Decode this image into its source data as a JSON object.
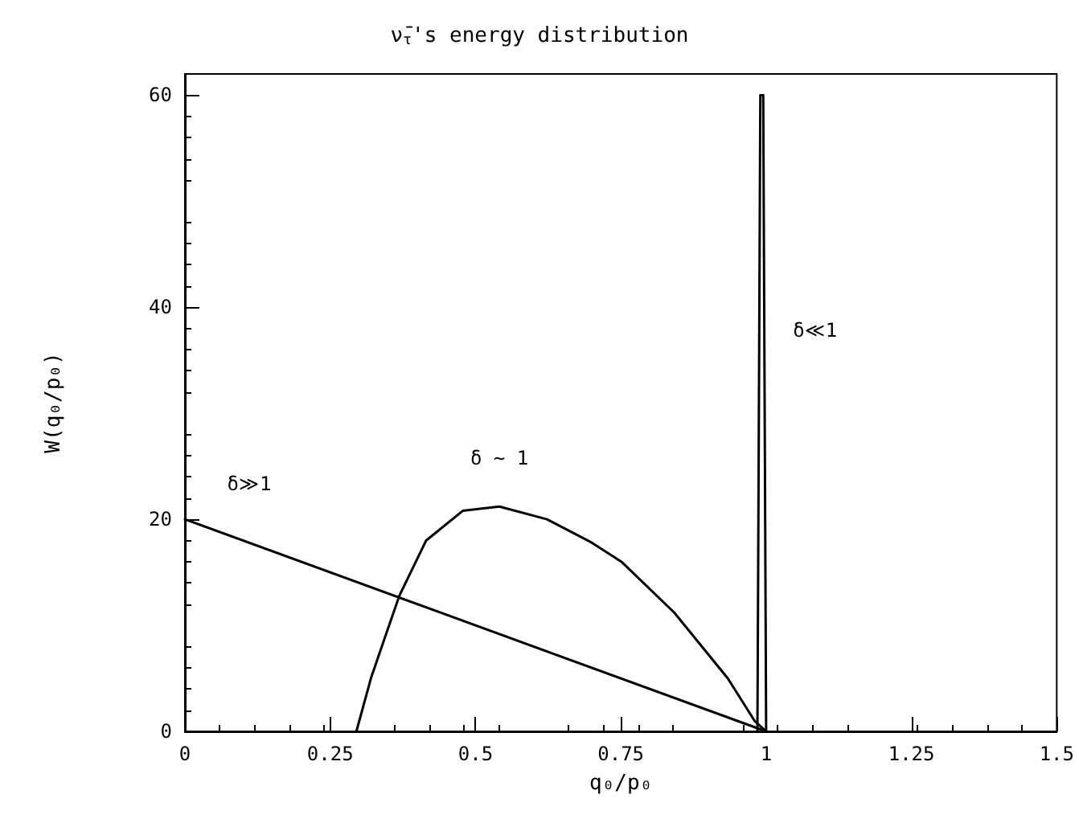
{
  "chart_data": {
    "type": "line",
    "title": "ν̄$_{τ}$'s energy distribution",
    "xlabel": "q₀/p₀",
    "ylabel": "W(q₀/p₀)",
    "series": [
      {
        "name": "δ≫1",
        "color": "#000000",
        "x": [
          0,
          1
        ],
        "values": [
          20,
          0
        ]
      },
      {
        "name": "δ ~ 1",
        "color": "#000000",
        "x": [
          0.295,
          0.32,
          0.345,
          0.369,
          0.415,
          0.478,
          0.541,
          0.623,
          0.7,
          0.751,
          0.842,
          0.934,
          0.98,
          1
        ],
        "values": [
          0,
          5,
          9,
          12.8,
          18,
          20.8,
          21.2,
          20,
          17.8,
          16,
          11.2,
          5,
          1,
          0
        ]
      },
      {
        "name": "δ≪1",
        "color": "#000000",
        "x": [
          0.985,
          0.99,
          0.995,
          1
        ],
        "values": [
          0,
          60,
          60,
          0
        ]
      }
    ],
    "xlim": [
      0,
      1.5
    ],
    "xticks": [
      0,
      0.25,
      0.5,
      0.75,
      1,
      1.25,
      1.5
    ],
    "ylim": [
      0,
      62
    ],
    "yticks": [
      0,
      20,
      40,
      60
    ],
    "grid": false,
    "marker": "none",
    "line_style": "solid"
  }
}
